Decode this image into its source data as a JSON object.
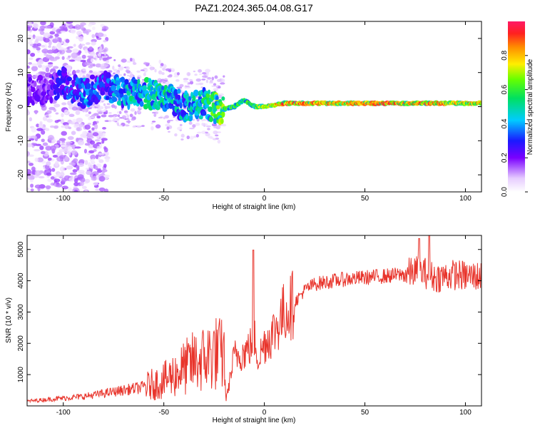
{
  "title": "PAZ1.2024.365.04.08.G17",
  "chart_data": [
    {
      "type": "heatmap",
      "xlabel": "Height of straight line (km)",
      "ylabel": "Frequency (Hz)",
      "xlim": [
        -118,
        108
      ],
      "ylim": [
        -25,
        25
      ],
      "xticks": [
        "-100",
        "-50",
        "0",
        "50",
        "100"
      ],
      "yticks": [
        "-20",
        "-10",
        "0",
        "10",
        "20"
      ],
      "colorbar": {
        "label": "Normalized spectral amplitude",
        "range": [
          0,
          1
        ],
        "ticks": [
          "0.0",
          "0.2",
          "0.4",
          "0.6",
          "0.8"
        ]
      },
      "ridge": {
        "x": [
          -110,
          -100,
          -90,
          -80,
          -70,
          -60,
          -50,
          -40,
          -30,
          -22,
          -15,
          -10,
          -5,
          0,
          10,
          20,
          40,
          60,
          80,
          100,
          108
        ],
        "freq": [
          5,
          7,
          4,
          6,
          4,
          4,
          3,
          0,
          1,
          -1,
          0,
          2,
          0,
          0,
          1,
          1,
          1,
          1,
          1,
          1,
          1
        ],
        "amplitude": [
          0.2,
          0.3,
          0.4,
          0.35,
          0.45,
          0.5,
          0.5,
          0.45,
          0.5,
          0.65,
          0.6,
          0.55,
          0.6,
          0.7,
          0.85,
          0.85,
          0.8,
          0.85,
          0.85,
          0.8,
          0.75
        ]
      }
    },
    {
      "type": "line",
      "xlabel": "Height of straight line (km)",
      "ylabel": "SNR (10 * v/v)",
      "xlim": [
        -118,
        108
      ],
      "ylim": [
        0,
        5450
      ],
      "xticks": [
        "-100",
        "-50",
        "0",
        "50",
        "100"
      ],
      "yticks": [
        "1000",
        "2000",
        "3000",
        "4000",
        "5000"
      ],
      "series": [
        {
          "color": "#e8342b",
          "x": [
            -118,
            -100,
            -90,
            -80,
            -70,
            -60,
            -50,
            -45,
            -40,
            -35,
            -30,
            -25,
            -20,
            -19,
            -15,
            -10,
            -7,
            -5,
            -3,
            0,
            5,
            10,
            15,
            20,
            25,
            30,
            40,
            50,
            60,
            70,
            75,
            80,
            85,
            90,
            95,
            100,
            108
          ],
          "y": [
            150,
            250,
            300,
            400,
            500,
            600,
            800,
            1000,
            1200,
            1400,
            1500,
            1700,
            1600,
            200,
            1600,
            1700,
            1900,
            2200,
            1500,
            2000,
            2400,
            3000,
            3300,
            3700,
            3900,
            3950,
            4050,
            4100,
            4150,
            4200,
            4300,
            4250,
            4100,
            4150,
            4200,
            4150,
            4150
          ]
        }
      ]
    }
  ]
}
